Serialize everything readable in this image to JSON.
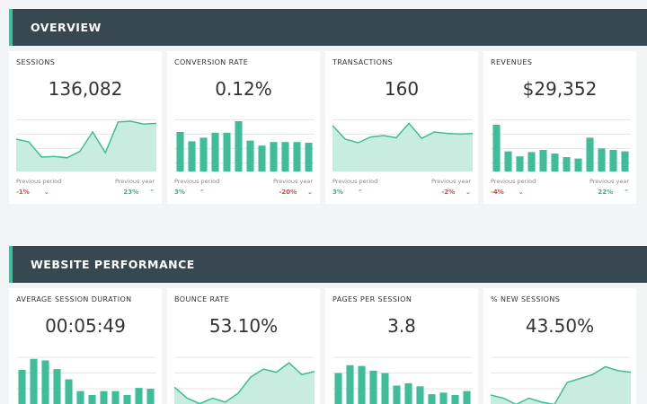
{
  "colors": {
    "accent": "#3dbd98",
    "header_bg": "#384850",
    "positive": "#2fb58f",
    "negative": "#e0463a"
  },
  "sections": [
    {
      "title": "OVERVIEW",
      "cards": [
        {
          "title": "SESSIONS",
          "value": "136,082",
          "chart_type": "area",
          "series": [
            45,
            41,
            20,
            21,
            19,
            28,
            55,
            26,
            69,
            70,
            66,
            67
          ],
          "prev_period_label": "Previous period",
          "prev_period_value": "-1%",
          "prev_period_dir": "down",
          "prev_year_label": "Previous year",
          "prev_year_value": "23%",
          "prev_year_dir": "up"
        },
        {
          "title": "CONVERSION RATE",
          "value": "0.12%",
          "chart_type": "bar",
          "series": [
            55,
            42,
            47,
            54,
            54,
            70,
            43,
            36,
            41,
            41,
            41,
            40
          ],
          "prev_period_label": "Previous period",
          "prev_period_value": "3%",
          "prev_period_dir": "up",
          "prev_year_label": "Previous year",
          "prev_year_value": "-20%",
          "prev_year_dir": "down"
        },
        {
          "title": "TRANSACTIONS",
          "value": "160",
          "chart_type": "area",
          "series": [
            64,
            45,
            40,
            48,
            50,
            47,
            67,
            46,
            55,
            53,
            52,
            53
          ],
          "prev_period_label": "Previous period",
          "prev_period_value": "3%",
          "prev_period_dir": "up",
          "prev_year_label": "Previous year",
          "prev_year_value": "-2%",
          "prev_year_dir": "down"
        },
        {
          "title": "REVENUES",
          "value": "$29,352",
          "chart_type": "bar",
          "series": [
            65,
            28,
            21,
            27,
            30,
            25,
            20,
            18,
            47,
            32,
            30,
            28
          ],
          "prev_period_label": "Previous period",
          "prev_period_value": "-4%",
          "prev_period_dir": "down",
          "prev_year_label": "Previous year",
          "prev_year_value": "22%",
          "prev_year_dir": "up"
        }
      ]
    },
    {
      "title": "WEBSITE PERFORMANCE",
      "cards": [
        {
          "title": "AVERAGE SESSION DURATION",
          "value": "00:05:49",
          "chart_type": "bar",
          "series": [
            56,
            70,
            68,
            57,
            44,
            29,
            24,
            29,
            29,
            24,
            33,
            32
          ]
        },
        {
          "title": "BOUNCE RATE",
          "value": "53.10%",
          "chart_type": "area",
          "series": [
            34,
            20,
            13,
            20,
            15,
            26,
            47,
            57,
            53,
            65,
            50,
            54
          ]
        },
        {
          "title": "PAGES PER SESSION",
          "value": "3.8",
          "chart_type": "bar",
          "series": [
            52,
            62,
            61,
            55,
            52,
            36,
            39,
            35,
            25,
            27,
            24,
            29
          ]
        },
        {
          "title": "% NEW SESSIONS",
          "value": "43.50%",
          "chart_type": "area",
          "series": [
            24,
            20,
            12,
            20,
            15,
            12,
            40,
            45,
            50,
            60,
            55,
            53
          ]
        }
      ]
    }
  ]
}
